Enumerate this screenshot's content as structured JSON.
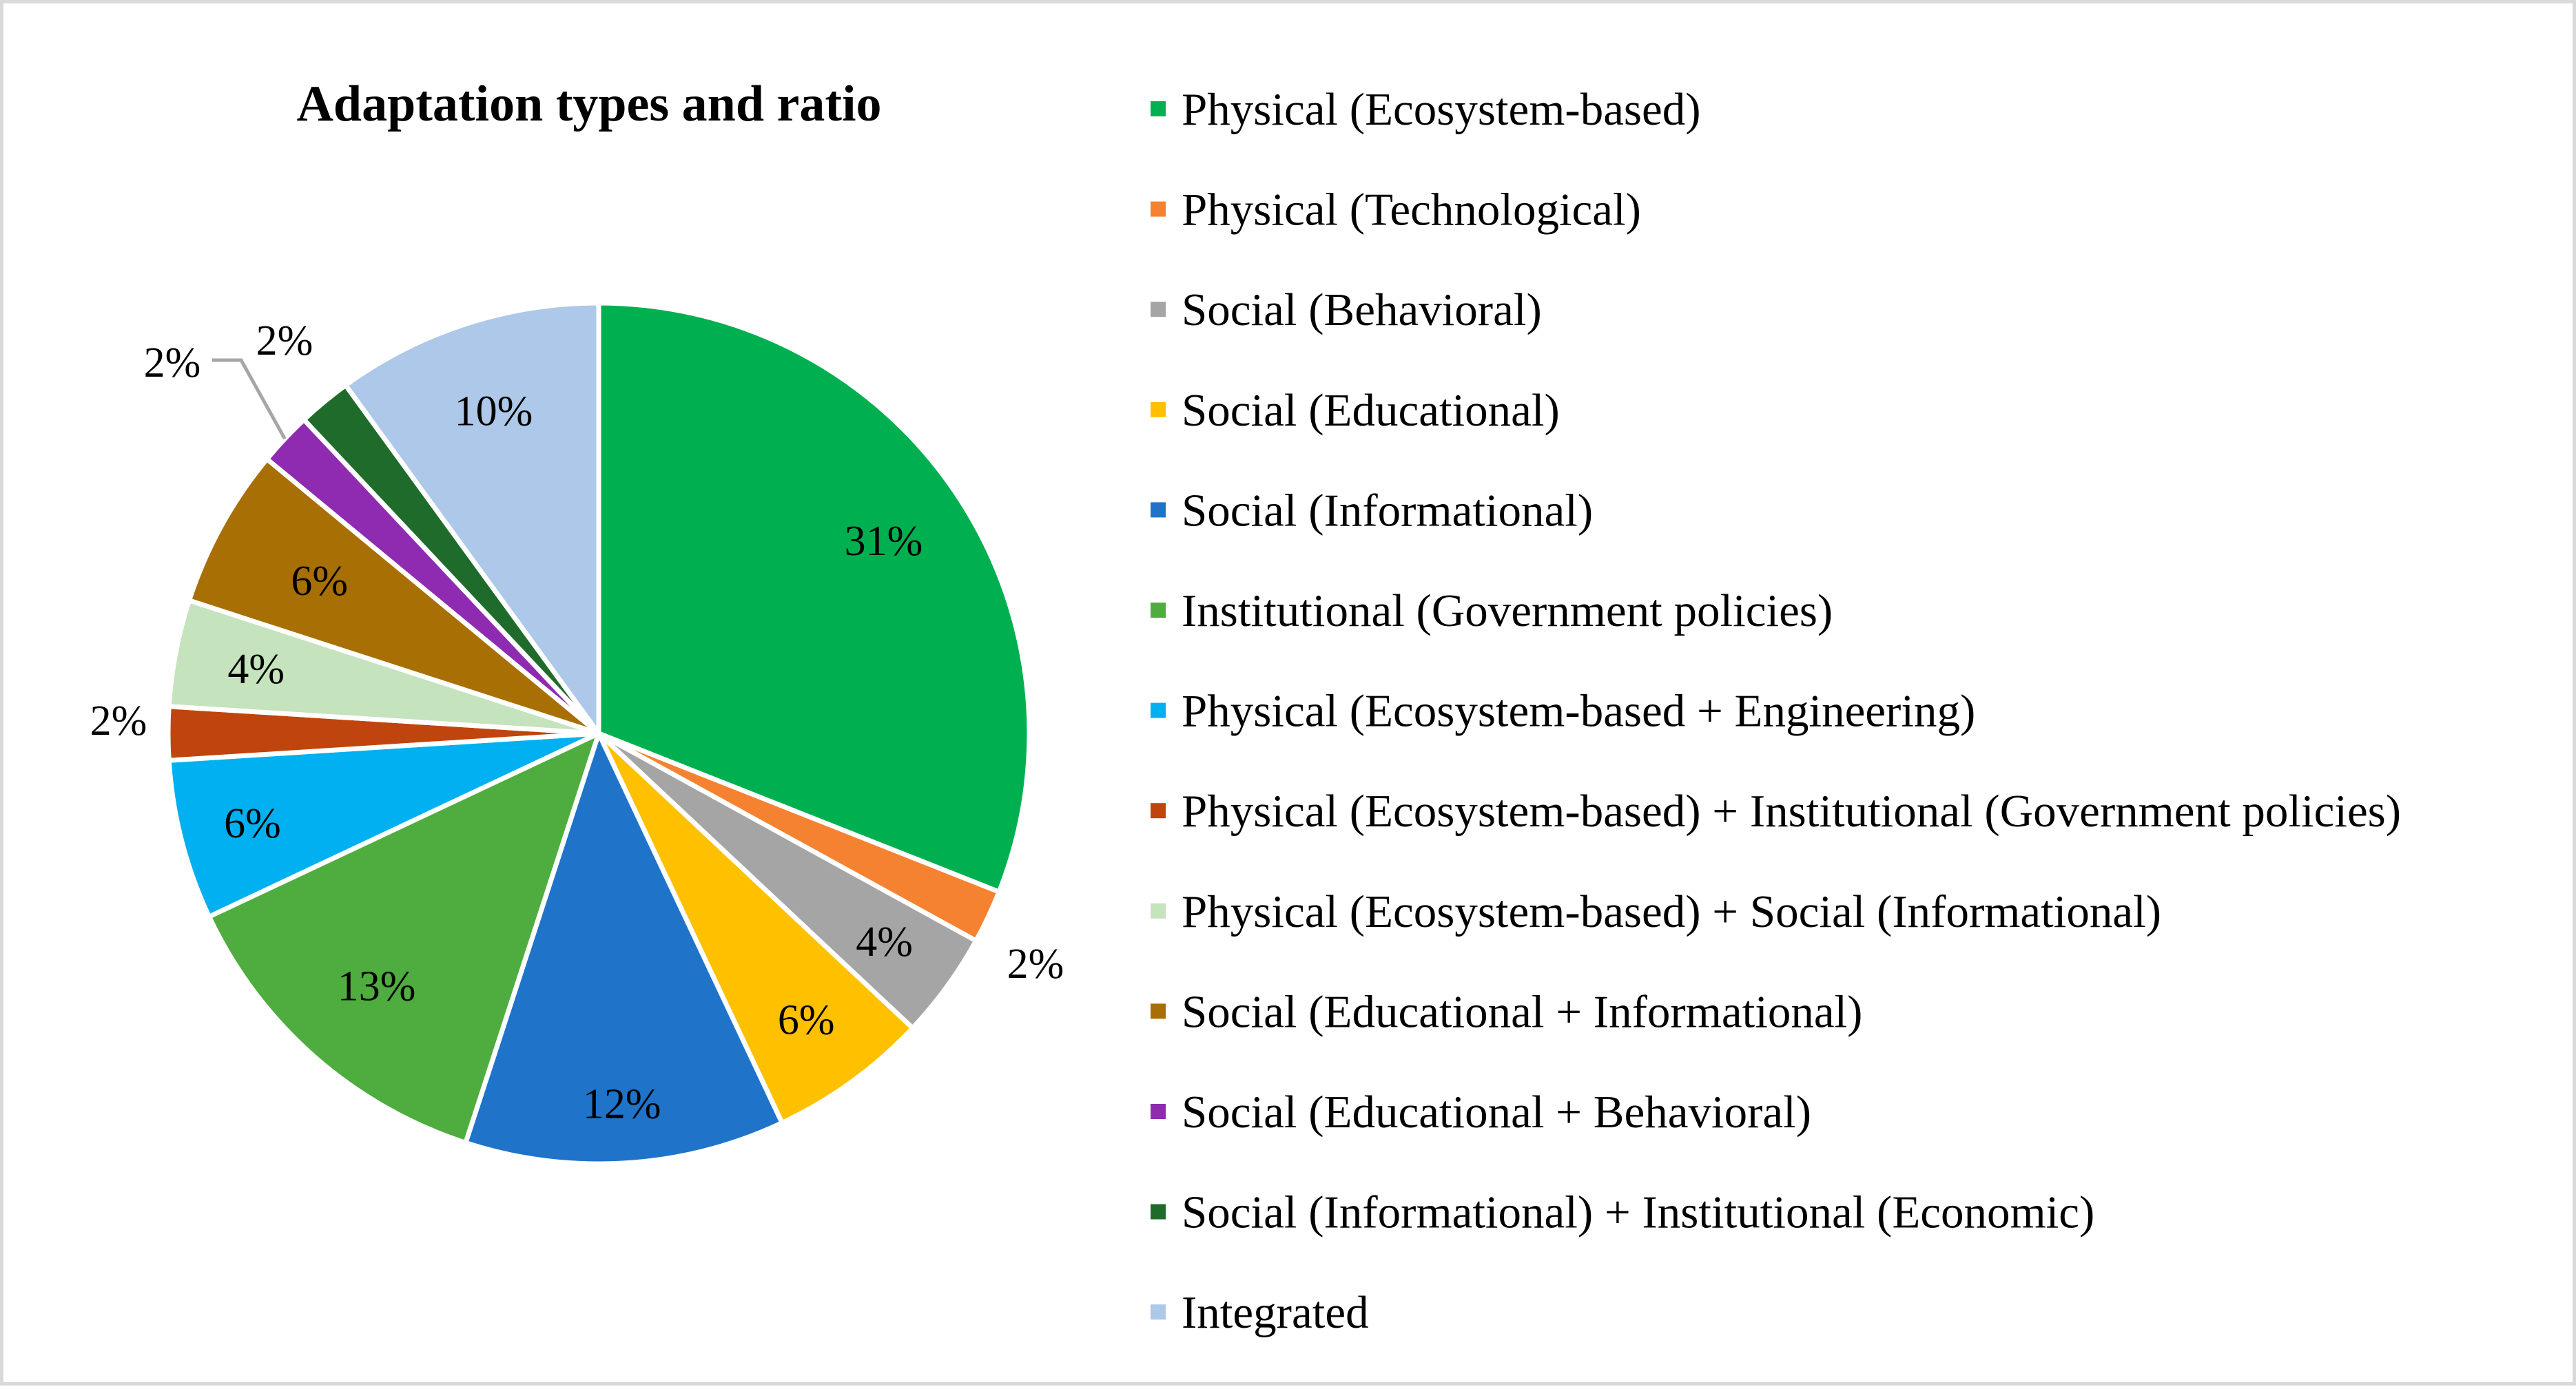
{
  "chart_data": {
    "type": "pie",
    "title": "Adaptation types and ratio",
    "legend_position": "right",
    "categories": [
      "Physical (Ecosystem-based)",
      "Physical (Technological)",
      "Social (Behavioral)",
      "Social (Educational)",
      "Social (Informational)",
      "Institutional (Government policies)",
      "Physical (Ecosystem-based + Engineering)",
      "Physical (Ecosystem-based) + Institutional (Government policies)",
      "Physical (Ecosystem-based) + Social (Informational)",
      "Social (Educational + Informational)",
      "Social (Educational + Behavioral)",
      "Social (Informational) + Institutional (Economic)",
      "Integrated"
    ],
    "values": [
      31,
      2,
      4,
      6,
      12,
      13,
      6,
      2,
      4,
      6,
      2,
      2,
      10
    ],
    "labels": [
      "31%",
      "2%",
      "4%",
      "6%",
      "12%",
      "13%",
      "6%",
      "2%",
      "4%",
      "6%",
      "2%",
      "2%",
      "10%"
    ],
    "colors": [
      "#00b050",
      "#f58231",
      "#a5a5a5",
      "#ffc000",
      "#1f74c9",
      "#4fad3f",
      "#00b0f0",
      "#c0440e",
      "#c5e3bc",
      "#a86f05",
      "#8e2bb0",
      "#1f6b2b",
      "#adc8e8"
    ]
  }
}
